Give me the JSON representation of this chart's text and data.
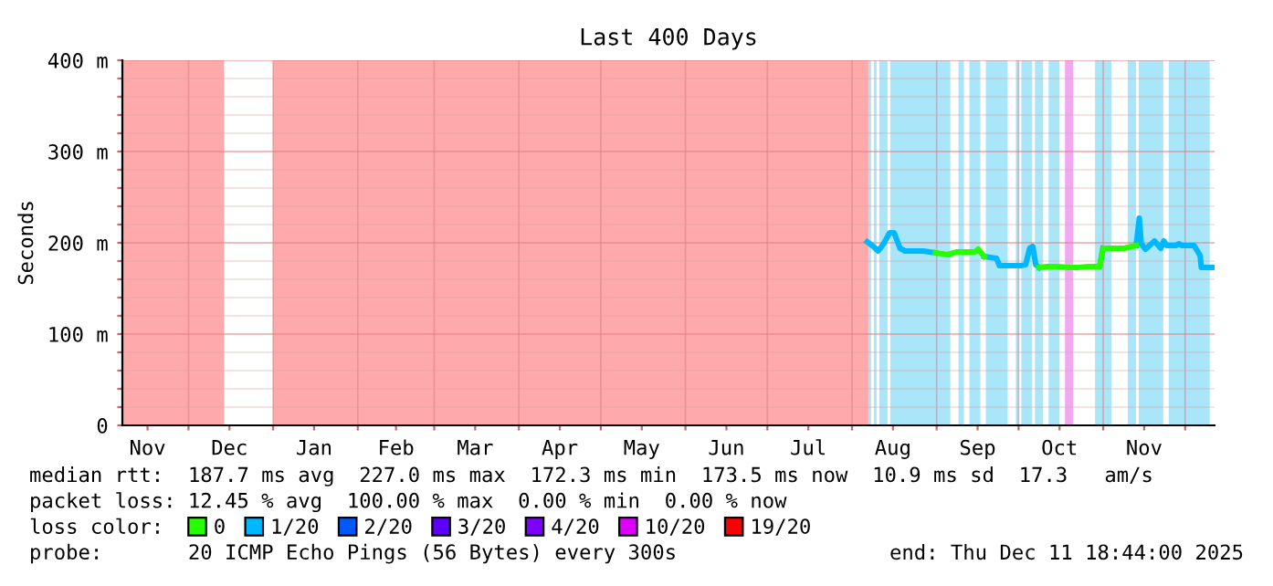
{
  "chart_data": {
    "type": "line",
    "title": "Last 400 Days",
    "ylabel": "Seconds",
    "legend_title": "loss color:",
    "x": [
      "2025-08-06T14:00",
      "2025-08-08T19:00",
      "2025-08-10T14:00",
      "2025-08-12T14:00",
      "2025-08-14T19:00",
      "2025-08-16T10:00",
      "2025-08-18T14:00",
      "2025-08-20T10:00",
      "2025-08-27T02:00",
      "2025-08-31T14:00",
      "2025-09-05T00:00",
      "2025-09-08T10:00",
      "2025-09-15T00:00",
      "2025-09-16T05:00",
      "2025-09-18T10:00",
      "2025-09-22T22:00",
      "2025-09-24T00:00",
      "2025-09-28T00:00",
      "2025-10-01T19:00",
      "2025-10-03T14:00",
      "2025-10-05T02:00",
      "2025-10-06T05:00",
      "2025-10-07T07:00",
      "2025-10-08T12:00",
      "2025-10-11T12:00",
      "2025-10-15T02:00",
      "2025-10-19T14:00",
      "2025-10-22T12:00",
      "2025-10-27T00:00",
      "2025-10-30T17:00",
      "2025-10-31T22:00",
      "2025-11-04T05:00",
      "2025-11-08T17:00",
      "2025-11-13T02:00",
      "2025-11-14T05:00",
      "2025-11-14T22:00",
      "2025-11-16T12:00",
      "2025-11-19T19:00",
      "2025-11-22T02:00",
      "2025-11-23T05:00",
      "2025-11-24T07:00",
      "2025-11-27T14:00",
      "2025-11-28T19:00",
      "2025-11-29T19:00",
      "2025-12-04T07:00",
      "2025-12-06T12:00",
      "2025-12-06T22:00",
      "2025-12-11T12:00"
    ],
    "series": [
      {
        "name": "0",
        "color": "#26ff00",
        "values": [
          null,
          null,
          null,
          null,
          null,
          null,
          null,
          null,
          null,
          189,
          187,
          190,
          190,
          193,
          185,
          null,
          null,
          null,
          null,
          null,
          null,
          null,
          null,
          173,
          174,
          174,
          173,
          173,
          174,
          174,
          194,
          194,
          194,
          197,
          null,
          null,
          null,
          null,
          null,
          null,
          null,
          null,
          null,
          null,
          null,
          null,
          null,
          null
        ]
      },
      {
        "name": "1/20",
        "color": "#00b8ff",
        "values": [
          201,
          196,
          191,
          199,
          211,
          211,
          194,
          191,
          191,
          189,
          null,
          null,
          null,
          null,
          185,
          183,
          175,
          175,
          175,
          176,
          194,
          196,
          176,
          173,
          null,
          null,
          null,
          null,
          null,
          174,
          194,
          null,
          null,
          197,
          227,
          199,
          193,
          202,
          194,
          202,
          197,
          197,
          199,
          197,
          197,
          186,
          173,
          173
        ]
      },
      {
        "name": "2/20",
        "color": "#0059ff",
        "values": [
          null,
          null,
          null,
          null,
          null,
          null,
          null,
          null,
          null,
          null,
          null,
          null,
          null,
          null,
          null,
          null,
          null,
          null,
          null,
          null,
          null,
          null,
          null,
          null,
          null,
          null,
          null,
          null,
          null,
          null,
          null,
          null,
          null,
          null,
          null,
          null,
          null,
          null,
          null,
          null,
          null,
          null,
          null,
          null,
          null,
          null,
          null,
          null
        ]
      },
      {
        "name": "3/20",
        "color": "#5e00ff",
        "values": [
          null,
          null,
          null,
          null,
          null,
          null,
          null,
          null,
          null,
          null,
          null,
          null,
          null,
          null,
          null,
          null,
          null,
          null,
          null,
          null,
          null,
          null,
          null,
          null,
          null,
          null,
          null,
          null,
          null,
          null,
          null,
          null,
          null,
          null,
          null,
          null,
          null,
          null,
          null,
          null,
          null,
          null,
          null,
          null,
          null,
          null,
          null,
          null
        ]
      },
      {
        "name": "4/20",
        "color": "#7e00ff",
        "values": [
          null,
          null,
          null,
          null,
          null,
          null,
          null,
          null,
          null,
          null,
          null,
          null,
          null,
          null,
          null,
          null,
          null,
          null,
          null,
          null,
          null,
          null,
          null,
          null,
          null,
          null,
          null,
          null,
          null,
          null,
          null,
          null,
          null,
          null,
          null,
          null,
          null,
          null,
          null,
          null,
          null,
          null,
          null,
          null,
          null,
          null,
          null,
          null
        ]
      },
      {
        "name": "10/20",
        "color": "#dd00ff",
        "values": [
          null,
          null,
          null,
          null,
          null,
          null,
          null,
          null,
          null,
          null,
          null,
          null,
          null,
          null,
          null,
          null,
          null,
          null,
          null,
          null,
          null,
          null,
          null,
          null,
          null,
          null,
          null,
          null,
          null,
          null,
          null,
          null,
          null,
          null,
          null,
          null,
          null,
          null,
          null,
          null,
          null,
          null,
          null,
          null,
          null,
          null,
          null,
          null
        ]
      },
      {
        "name": "19/20",
        "color": "#ff0000",
        "values": [
          null,
          null,
          null,
          null,
          null,
          null,
          null,
          null,
          null,
          null,
          null,
          null,
          null,
          null,
          null,
          null,
          null,
          null,
          null,
          null,
          null,
          null,
          null,
          null,
          null,
          null,
          null,
          null,
          null,
          null,
          null,
          null,
          null,
          null,
          null,
          null,
          null,
          null,
          null,
          null,
          null,
          null,
          null,
          null,
          null,
          null,
          null,
          null
        ]
      }
    ],
    "xlim": [
      "2024-11-06T18:44",
      "2025-12-11T18:44"
    ],
    "xticks": [
      {
        "value": "2024-11-16",
        "label": "Nov"
      },
      {
        "value": "2024-12-01",
        "label": null
      },
      {
        "value": "2024-12-16",
        "label": "Dec"
      },
      {
        "value": "2025-01-01",
        "label": null
      },
      {
        "value": "2025-01-16",
        "label": "Jan"
      },
      {
        "value": "2025-02-01",
        "label": null
      },
      {
        "value": "2025-02-15",
        "label": "Feb"
      },
      {
        "value": "2025-03-01",
        "label": null
      },
      {
        "value": "2025-03-16",
        "label": "Mar"
      },
      {
        "value": "2025-04-01",
        "label": null
      },
      {
        "value": "2025-04-16",
        "label": "Apr"
      },
      {
        "value": "2025-05-01",
        "label": null
      },
      {
        "value": "2025-05-16",
        "label": "May"
      },
      {
        "value": "2025-06-01",
        "label": null
      },
      {
        "value": "2025-06-16",
        "label": "Jun"
      },
      {
        "value": "2025-07-01",
        "label": null
      },
      {
        "value": "2025-07-16",
        "label": "Jul"
      },
      {
        "value": "2025-08-01",
        "label": null
      },
      {
        "value": "2025-08-16",
        "label": "Aug"
      },
      {
        "value": "2025-09-01",
        "label": null
      },
      {
        "value": "2025-09-16",
        "label": "Sep"
      },
      {
        "value": "2025-10-01",
        "label": null
      },
      {
        "value": "2025-10-16",
        "label": "Oct"
      },
      {
        "value": "2025-11-01",
        "label": null
      },
      {
        "value": "2025-11-16",
        "label": "Nov"
      },
      {
        "value": "2025-12-01",
        "label": null
      }
    ],
    "ylim": [
      0,
      400
    ],
    "yticks": [
      0,
      {
        "value": 20,
        "label": null
      },
      {
        "value": 40,
        "label": null
      },
      {
        "value": 60,
        "label": null
      },
      {
        "value": 80,
        "label": null
      },
      {
        "value": 100,
        "label": "100 m"
      },
      {
        "value": 120,
        "label": null
      },
      {
        "value": 140,
        "label": null
      },
      {
        "value": 160,
        "label": null
      },
      {
        "value": 180,
        "label": null
      },
      {
        "value": 200,
        "label": "200 m"
      },
      {
        "value": 220,
        "label": null
      },
      {
        "value": 240,
        "label": null
      },
      {
        "value": 260,
        "label": null
      },
      {
        "value": 280,
        "label": null
      },
      {
        "value": 300,
        "label": "300 m"
      },
      {
        "value": 320,
        "label": null
      },
      {
        "value": 340,
        "label": null
      },
      {
        "value": 360,
        "label": null
      },
      {
        "value": 380,
        "label": null
      },
      {
        "value": 400,
        "label": "400 m"
      }
    ],
    "bands": [
      {
        "axis": "x",
        "from": "2024-11-06T18:44",
        "to": "2024-12-14",
        "color": "#ffaaaa"
      },
      {
        "axis": "x",
        "from": "2025-01-01",
        "to": "2025-08-07",
        "color": "#ffaaaa"
      },
      {
        "axis": "x",
        "from": "2025-08-07",
        "to": "2025-08-08",
        "color": "#aae6fa"
      },
      {
        "axis": "x",
        "from": "2025-08-09",
        "to": "2025-08-10",
        "color": "#aae6fa"
      },
      {
        "axis": "x",
        "from": "2025-08-11",
        "to": "2025-08-14",
        "color": "#aae6fa"
      },
      {
        "axis": "x",
        "from": "2025-08-15",
        "to": "2025-09-06",
        "color": "#aae6fa"
      },
      {
        "axis": "x",
        "from": "2025-09-09",
        "to": "2025-09-11",
        "color": "#aae6fa"
      },
      {
        "axis": "x",
        "from": "2025-09-13",
        "to": "2025-09-17",
        "color": "#aae6fa"
      },
      {
        "axis": "x",
        "from": "2025-09-19",
        "to": "2025-09-27",
        "color": "#aae6fa"
      },
      {
        "axis": "x",
        "from": "2025-09-30",
        "to": "2025-10-01",
        "color": "#aae6fa"
      },
      {
        "axis": "x",
        "from": "2025-10-02",
        "to": "2025-10-06",
        "color": "#aae6fa"
      },
      {
        "axis": "x",
        "from": "2025-10-07",
        "to": "2025-10-10",
        "color": "#aae6fa"
      },
      {
        "axis": "x",
        "from": "2025-10-12",
        "to": "2025-10-16",
        "color": "#aae6fa"
      },
      {
        "axis": "x",
        "from": "2025-10-18",
        "to": "2025-10-21",
        "color": "#f0a8f0"
      },
      {
        "axis": "x",
        "from": "2025-10-29",
        "to": "2025-11-04",
        "color": "#aae6fa"
      },
      {
        "axis": "x",
        "from": "2025-11-10",
        "to": "2025-11-13",
        "color": "#aae6fa"
      },
      {
        "axis": "x",
        "from": "2025-11-14",
        "to": "2025-11-23",
        "color": "#aae6fa"
      },
      {
        "axis": "x",
        "from": "2025-11-25",
        "to": "2025-12-10",
        "color": "#aae6fa"
      }
    ],
    "annotations": [
      "median rtt:  187.7 ms avg  227.0 ms max  172.3 ms min  173.5 ms now  10.9 ms sd  17.3   am/s",
      "packet loss: 12.45 % avg  100.00 % max  0.00 % min  0.00 % now",
      "probe:       20 ICMP Echo Pings (56 Bytes) every 300s",
      "end: Thu Dec 11 18:44:00 2025"
    ],
    "grid": true,
    "legend": "bottom",
    "line_style": "solid",
    "marker": "none"
  }
}
